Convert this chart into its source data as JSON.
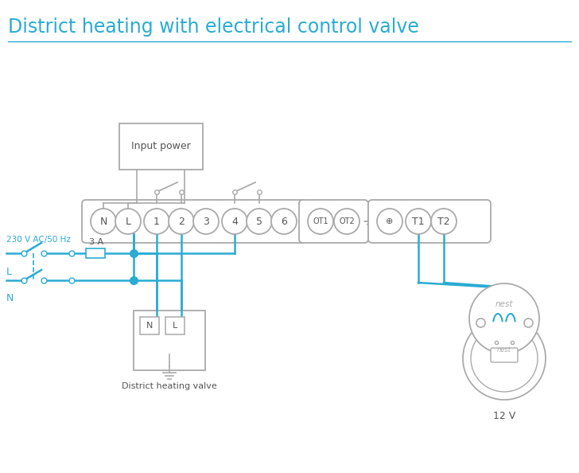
{
  "title": "District heating with electrical control valve",
  "title_color": "#29ABD4",
  "title_fontsize": 17,
  "line_color": "#29ABD4",
  "border_color": "#AAAAAA",
  "text_color": "#555555",
  "bg_color": "#FFFFFF",
  "terminal_labels": [
    "N",
    "L",
    "1",
    "2",
    "3",
    "4",
    "5",
    "6"
  ],
  "ot_labels": [
    "OT1",
    "OT2"
  ],
  "t_labels": [
    "±",
    "T1",
    "T2"
  ],
  "input_power_label": "Input power",
  "valve_label": "District heating valve",
  "voltage_label": "12 V",
  "ac_label": "230 V AC/50 Hz",
  "fuse_label": "3 A",
  "L_label": "L",
  "N_label": "N",
  "nest_label": "nest"
}
